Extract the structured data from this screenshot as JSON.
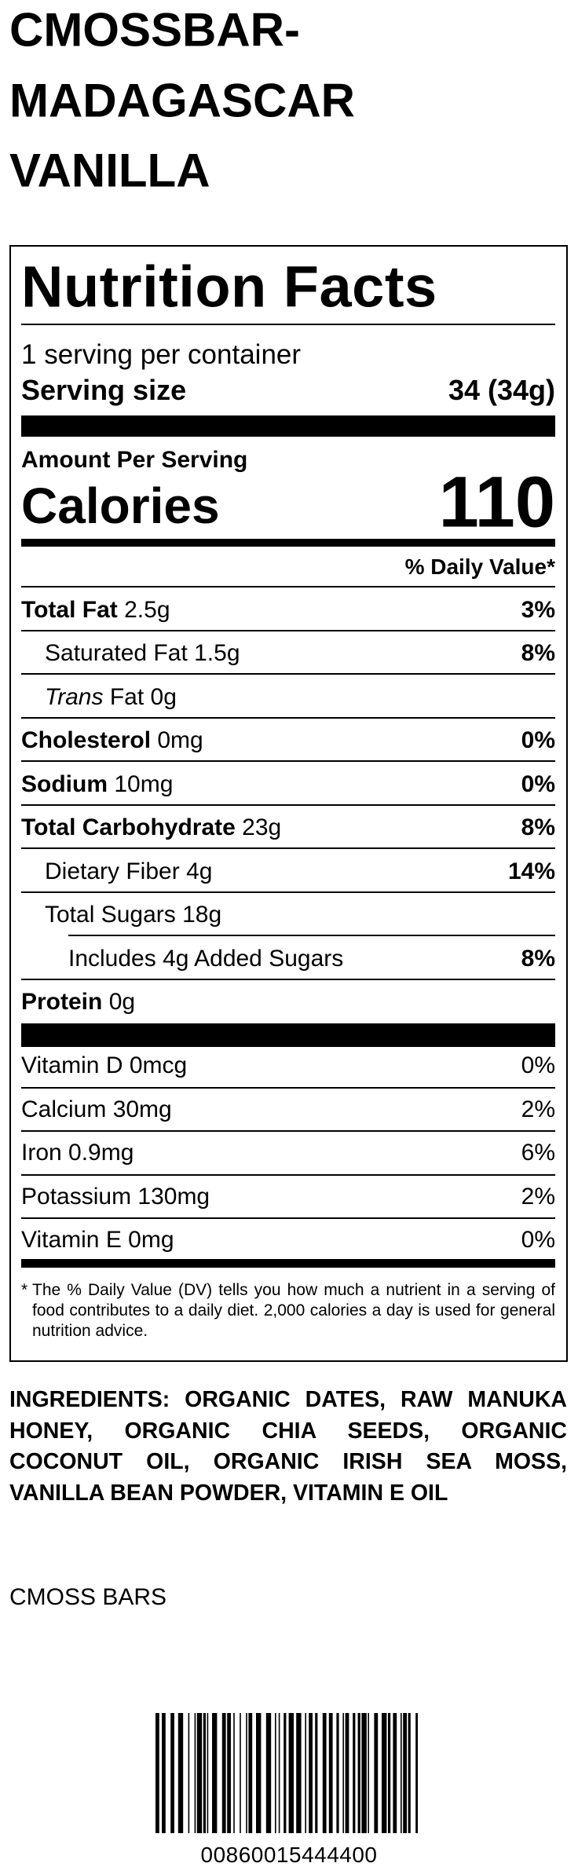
{
  "product": {
    "title_lines": [
      "CMOSSBAR-",
      "MADAGASCAR",
      "VANILLA"
    ]
  },
  "label": {
    "title": "Nutrition Facts",
    "servings": "1 serving per container",
    "serving_size_label": "Serving size",
    "serving_size": "34 (34g)",
    "amount_per_serving": "Amount Per Serving",
    "calories_label": "Calories",
    "calories": "110",
    "daily_value_header": "% Daily Value*",
    "nutrients": [
      {
        "name": "Total Fat",
        "amount": "2.5g",
        "dv": "3%"
      },
      {
        "name": "Saturated Fat",
        "amount": "1.5g",
        "dv": "8%"
      },
      {
        "name_italic": "Trans",
        "name": "Fat",
        "amount": "0g"
      },
      {
        "name": "Cholesterol",
        "amount": "0mg",
        "dv": "0%"
      },
      {
        "name": "Sodium",
        "amount": "10mg",
        "dv": "0%"
      },
      {
        "name": "Total Carbohydrate",
        "amount": "23g",
        "dv": "8%"
      },
      {
        "name": "Dietary Fiber",
        "amount": "4g",
        "dv": "14%"
      },
      {
        "name": "Total Sugars",
        "amount": "18g"
      },
      {
        "name": "Includes 4g Added Sugars",
        "dv": "8%"
      },
      {
        "name": "Protein",
        "amount": "0g"
      }
    ],
    "vitamins": [
      {
        "name": "Vitamin D 0mcg",
        "dv": "0%"
      },
      {
        "name": "Calcium 30mg",
        "dv": "2%"
      },
      {
        "name": "Iron 0.9mg",
        "dv": "6%"
      },
      {
        "name": "Potassium 130mg",
        "dv": "2%"
      },
      {
        "name": "Vitamin E 0mg",
        "dv": "0%"
      }
    ],
    "footnote": {
      "mark": "*",
      "text": "The % Daily Value (DV) tells you how much a nutrient in a serving of food contributes to a daily diet. 2,000 calories a day is used for general nutrition advice."
    }
  },
  "ingredients": "INGREDIENTS: ORGANIC DATES, RAW MANUKA HONEY, ORGANIC CHIA SEEDS, ORGANIC COCONUT OIL, ORGANIC IRISH SEA MOSS, VANILLA BEAN POWDER, VITAMIN E OIL",
  "brand": "CMOSS BARS",
  "barcode": "00860015444400"
}
